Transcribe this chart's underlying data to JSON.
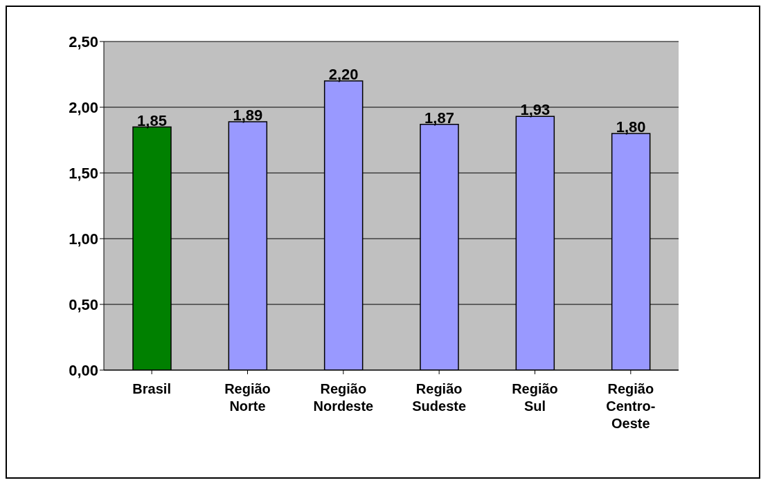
{
  "chart_data": {
    "type": "bar",
    "categories": [
      "Brasil",
      "Região Norte",
      "Região Nordeste",
      "Região Sudeste",
      "Região Sul",
      "Região Centro-Oeste"
    ],
    "values": [
      1.85,
      1.89,
      2.2,
      1.87,
      1.93,
      1.8
    ],
    "colors": [
      "#008000",
      "#9999ff",
      "#9999ff",
      "#9999ff",
      "#9999ff",
      "#9999ff"
    ],
    "value_labels": [
      "1,85",
      "1,89",
      "2,20",
      "1,87",
      "1,93",
      "1,80"
    ],
    "ylim": [
      0,
      2.5
    ],
    "yticks": [
      {
        "value": 0,
        "label": "0,00"
      },
      {
        "value": 0.5,
        "label": "0,50"
      },
      {
        "value": 1,
        "label": "1,00"
      },
      {
        "value": 1.5,
        "label": "1,50"
      },
      {
        "value": 2,
        "label": "2,00"
      },
      {
        "value": 2.5,
        "label": "2,50"
      }
    ],
    "grid": "y"
  }
}
